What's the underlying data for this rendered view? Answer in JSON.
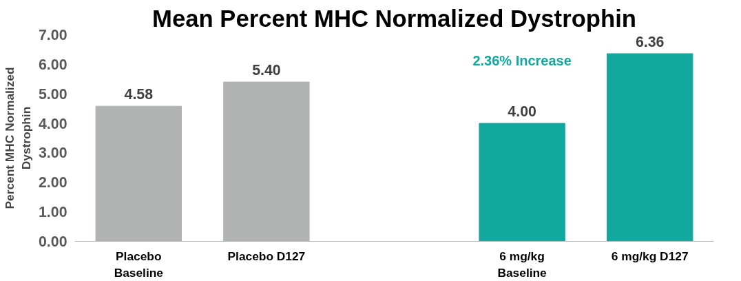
{
  "chart_data": {
    "type": "bar",
    "title": "Mean Percent MHC Normalized Dystrophin",
    "ylabel": "Percent MHC Normalized\nDystrophin",
    "categories": [
      "Placebo\nBaseline",
      "Placebo D127",
      null,
      "6 mg/kg\nBaseline",
      "6 mg/kg D127"
    ],
    "values": [
      4.58,
      5.4,
      null,
      4.0,
      6.36
    ],
    "colors": [
      "#b1b3b3",
      "#b1b3b3",
      "#b1b3b3",
      "#13a89e",
      "#13a89e"
    ],
    "ylim": [
      0,
      7
    ],
    "value_labels": [
      "4.58",
      "5.40",
      null,
      "4.00",
      "6.36"
    ],
    "yticks": [
      {
        "value": 0,
        "label": "0.00"
      },
      {
        "value": 1,
        "label": "1.00"
      },
      {
        "value": 2,
        "label": "2.00"
      },
      {
        "value": 3,
        "label": "3.00"
      },
      {
        "value": 4,
        "label": "4.00"
      },
      {
        "value": 5,
        "label": "5.00"
      },
      {
        "value": 6,
        "label": "6.00"
      },
      {
        "value": 7,
        "label": "7.00"
      }
    ],
    "annotations": [
      "2.36% Increase"
    ],
    "grid": false
  }
}
